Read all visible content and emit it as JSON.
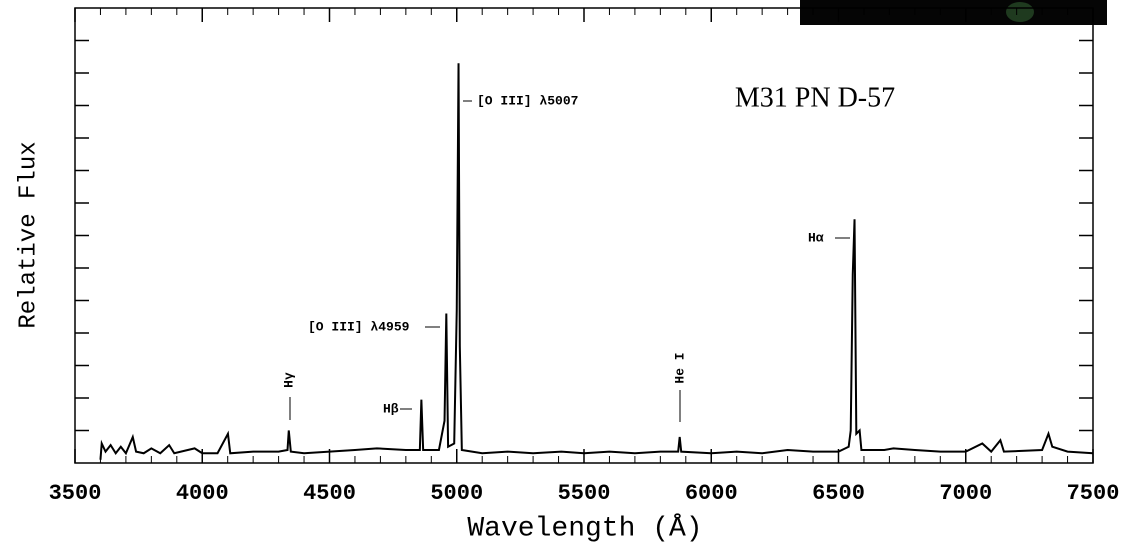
{
  "chart_data": {
    "type": "line",
    "title": "M31 PN D-57",
    "x_label": "Wavelength (Å)",
    "y_label": "Relative Flux",
    "xlim": [
      3500,
      7500
    ],
    "xticks": [
      3500,
      4000,
      4500,
      5000,
      5500,
      6000,
      6500,
      7000,
      7500
    ],
    "ylim": [
      0,
      14
    ],
    "yticks": [
      1,
      2,
      3,
      4,
      5,
      6,
      7,
      8,
      9,
      10,
      11,
      12,
      13
    ],
    "color": "#000000",
    "annotations": [
      "[O III] λ5007",
      "Hα",
      "[O III] λ4959",
      "Hβ",
      "Hγ",
      "He I"
    ],
    "x": [
      3600,
      3605,
      3620,
      3640,
      3660,
      3680,
      3700,
      3727,
      3740,
      3770,
      3800,
      3835,
      3870,
      3890,
      3970,
      4000,
      4060,
      4101,
      4110,
      4200,
      4300,
      4335,
      4340,
      4348,
      4400,
      4500,
      4600,
      4686,
      4800,
      4855,
      4861,
      4868,
      4930,
      4952,
      4959,
      4966,
      4990,
      5000,
      5007,
      5012,
      5020,
      5100,
      5200,
      5300,
      5411,
      5500,
      5600,
      5700,
      5800,
      5870,
      5876,
      5882,
      6000,
      6100,
      6200,
      6300,
      6400,
      6500,
      6540,
      6548,
      6556,
      6563,
      6570,
      6583,
      6590,
      6680,
      6716,
      6800,
      6900,
      7000,
      7065,
      7100,
      7136,
      7150,
      7300,
      7325,
      7340,
      7400,
      7500
    ],
    "values": [
      0.1,
      0.6,
      0.35,
      0.55,
      0.3,
      0.5,
      0.3,
      0.8,
      0.35,
      0.3,
      0.45,
      0.3,
      0.55,
      0.3,
      0.45,
      0.3,
      0.3,
      0.9,
      0.3,
      0.35,
      0.35,
      0.4,
      1.0,
      0.35,
      0.3,
      0.35,
      0.4,
      0.45,
      0.4,
      0.4,
      1.95,
      0.4,
      0.4,
      1.3,
      4.6,
      0.5,
      0.6,
      4.7,
      12.3,
      3.6,
      0.4,
      0.3,
      0.35,
      0.3,
      0.35,
      0.3,
      0.35,
      0.3,
      0.35,
      0.35,
      0.8,
      0.35,
      0.3,
      0.35,
      0.3,
      0.4,
      0.35,
      0.35,
      0.5,
      1.0,
      5.8,
      7.5,
      0.9,
      1.0,
      0.4,
      0.4,
      0.45,
      0.4,
      0.35,
      0.35,
      0.6,
      0.35,
      0.7,
      0.35,
      0.4,
      0.9,
      0.5,
      0.35,
      0.3
    ]
  }
}
